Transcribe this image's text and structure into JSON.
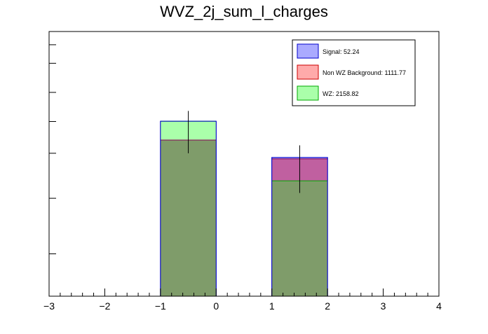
{
  "chart_data": {
    "type": "bar",
    "title": "WVZ_2j_sum_l_charges",
    "xlabel": "",
    "ylabel": "",
    "xlim": [
      -3,
      4
    ],
    "ylim": [
      0,
      1.0
    ],
    "x_ticks": [
      "−3",
      "−2",
      "−1",
      "0",
      "1",
      "2",
      "3",
      "4"
    ],
    "x_tick_values": [
      -3,
      -2,
      -1,
      0,
      1,
      2,
      3,
      4
    ],
    "y_tick_values": [
      0.16,
      0.37,
      0.54,
      0.66,
      0.77,
      0.88,
      0.95
    ],
    "y_tick_labels_visible": false,
    "bins": [
      [
        -1,
        0
      ],
      [
        1,
        2
      ]
    ],
    "stacked": false,
    "series": [
      {
        "name": "Signal: 52.24",
        "values": [
          0.661,
          0.524
        ],
        "color": "#aaaaff",
        "edge": "#0000cc"
      },
      {
        "name": "Non WZ Background: 1111.77",
        "values": [
          0.59,
          0.519
        ],
        "color": "#c060a0",
        "edge": "#880055"
      },
      {
        "name": "WZ: 2158.82",
        "values": [
          0.661,
          0.436
        ],
        "color": "#aaffaa",
        "edge": "#00aa00"
      }
    ],
    "overlap_color": "#7f9c6a",
    "error_bars": [
      {
        "x": -0.5,
        "y": 0.62,
        "yerr": 0.08
      },
      {
        "x": 1.5,
        "y": 0.48,
        "yerr": 0.09
      }
    ],
    "legend_position": "top-right",
    "legend": [
      {
        "label": "Signal: 52.24",
        "color": "#aaaaff",
        "edge": "#0000cc"
      },
      {
        "label": "Non WZ Background: 1111.77",
        "color": "#ffaaaa",
        "edge": "#cc0000"
      },
      {
        "label": "WZ: 2158.82",
        "color": "#aaffaa",
        "edge": "#00aa00"
      }
    ],
    "grid": false
  }
}
